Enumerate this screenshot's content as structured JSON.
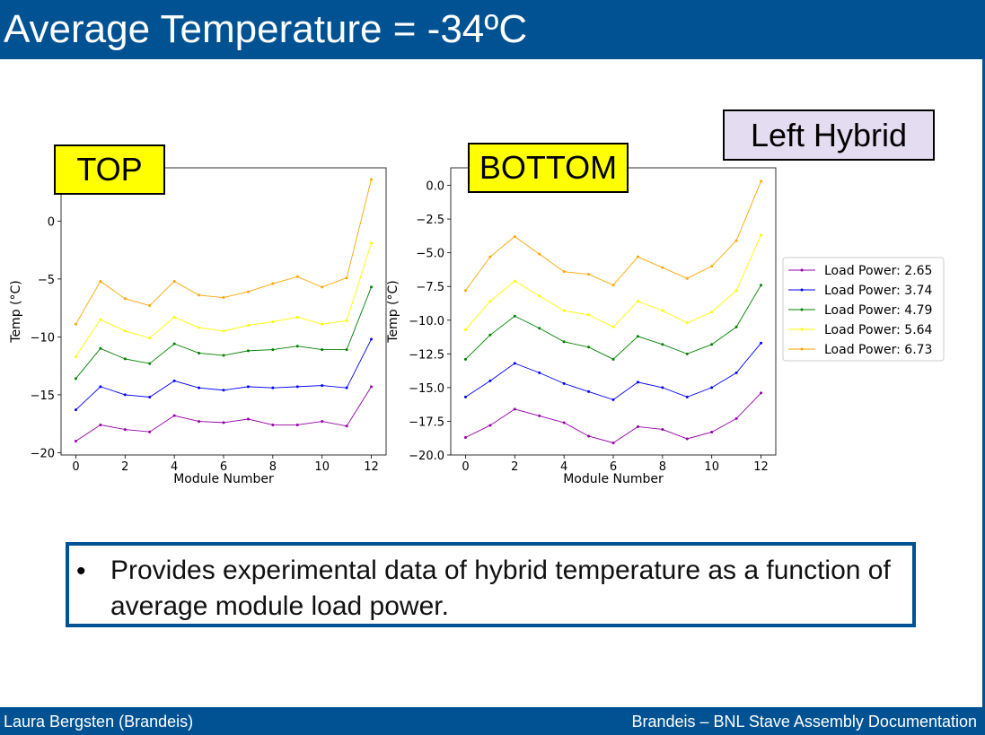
{
  "slide": {
    "title": "Average Temperature = -34ºC",
    "labels": {
      "top": "TOP",
      "bottom": "BOTTOM",
      "left_hybrid": "Left Hybrid"
    },
    "bullet": "Provides experimental data of hybrid temperature as a function of average module load power.",
    "footer_left": "Laura Bergsten (Brandeis)",
    "footer_right": "Brandeis – BNL Stave Assembly Documentation"
  },
  "colors": {
    "brand": "#005293",
    "series": [
      "#9400a8",
      "#0000ff",
      "#008000",
      "#ffff00",
      "#ffa500"
    ]
  },
  "chart_data": [
    {
      "type": "line",
      "label": "TOP",
      "xlabel": "Module Number",
      "ylabel": "Temp (°C)",
      "xlim": [
        -0.6,
        12.6
      ],
      "ylim": [
        -20.2,
        4.6
      ],
      "xticks": [
        0,
        2,
        4,
        6,
        8,
        10,
        12
      ],
      "yticks": [
        0,
        -5,
        -10,
        -15,
        -20
      ],
      "x": [
        0,
        1,
        2,
        3,
        4,
        5,
        6,
        7,
        8,
        9,
        10,
        11,
        12
      ],
      "series": [
        {
          "name": "Load Power: 2.65",
          "values": [
            -19.0,
            -17.6,
            -18.0,
            -18.2,
            -16.8,
            -17.3,
            -17.4,
            -17.1,
            -17.6,
            -17.6,
            -17.3,
            -17.7,
            -14.3
          ]
        },
        {
          "name": "Load Power: 3.74",
          "values": [
            -16.3,
            -14.3,
            -15.0,
            -15.2,
            -13.8,
            -14.4,
            -14.6,
            -14.3,
            -14.4,
            -14.3,
            -14.2,
            -14.4,
            -10.2
          ]
        },
        {
          "name": "Load Power: 4.79",
          "values": [
            -13.6,
            -11.0,
            -11.9,
            -12.3,
            -10.6,
            -11.4,
            -11.6,
            -11.2,
            -11.1,
            -10.8,
            -11.1,
            -11.1,
            -5.7
          ]
        },
        {
          "name": "Load Power: 5.64",
          "values": [
            -11.7,
            -8.5,
            -9.5,
            -10.1,
            -8.3,
            -9.2,
            -9.5,
            -9.0,
            -8.7,
            -8.3,
            -8.9,
            -8.6,
            -1.9
          ]
        },
        {
          "name": "Load Power: 6.73",
          "values": [
            -8.9,
            -5.2,
            -6.7,
            -7.3,
            -5.2,
            -6.4,
            -6.6,
            -6.1,
            -5.4,
            -4.8,
            -5.7,
            -4.9,
            3.6
          ]
        }
      ],
      "grid": false
    },
    {
      "type": "line",
      "label": "BOTTOM",
      "xlabel": "Module Number",
      "ylabel": "Temp (°C)",
      "xlim": [
        -0.6,
        12.6
      ],
      "ylim": [
        -20.0,
        1.3
      ],
      "xticks": [
        0,
        2,
        4,
        6,
        8,
        10,
        12
      ],
      "yticks": [
        0.0,
        -2.5,
        -5.0,
        -7.5,
        -10.0,
        -12.5,
        -15.0,
        -17.5,
        -20.0
      ],
      "x": [
        0,
        1,
        2,
        3,
        4,
        5,
        6,
        7,
        8,
        9,
        10,
        11,
        12
      ],
      "series": [
        {
          "name": "Load Power: 2.65",
          "values": [
            -18.7,
            -17.8,
            -16.6,
            -17.1,
            -17.6,
            -18.6,
            -19.1,
            -17.9,
            -18.1,
            -18.8,
            -18.3,
            -17.3,
            -15.4
          ]
        },
        {
          "name": "Load Power: 3.74",
          "values": [
            -15.7,
            -14.5,
            -13.2,
            -13.9,
            -14.7,
            -15.3,
            -15.9,
            -14.6,
            -15.0,
            -15.7,
            -15.0,
            -13.9,
            -11.7
          ]
        },
        {
          "name": "Load Power: 4.79",
          "values": [
            -12.9,
            -11.1,
            -9.7,
            -10.6,
            -11.6,
            -12.0,
            -12.9,
            -11.2,
            -11.8,
            -12.5,
            -11.8,
            -10.5,
            -7.4
          ]
        },
        {
          "name": "Load Power: 5.64",
          "values": [
            -10.7,
            -8.6,
            -7.1,
            -8.2,
            -9.3,
            -9.6,
            -10.5,
            -8.6,
            -9.3,
            -10.2,
            -9.4,
            -7.8,
            -3.7
          ]
        },
        {
          "name": "Load Power: 6.73",
          "values": [
            -7.8,
            -5.3,
            -3.8,
            -5.1,
            -6.4,
            -6.6,
            -7.4,
            -5.3,
            -6.1,
            -6.9,
            -6.0,
            -4.1,
            0.3
          ]
        }
      ],
      "grid": false,
      "legend": "right"
    }
  ]
}
